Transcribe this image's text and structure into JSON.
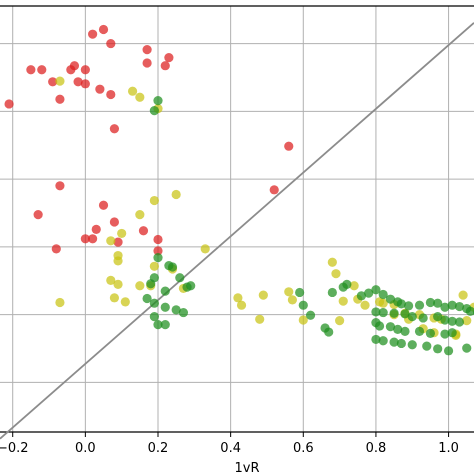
{
  "chart_data": {
    "type": "scatter",
    "xlabel": "1vR",
    "xlim": [
      -0.235,
      1.07
    ],
    "ylim": [
      0.0,
      6.35
    ],
    "x_ticks": [
      -0.2,
      0.0,
      0.2,
      0.4,
      0.6,
      0.8,
      1.0
    ],
    "x_tick_labels": [
      "−0.2",
      "0.0",
      "0.2",
      "0.4",
      "0.6",
      "0.8",
      "1.0"
    ],
    "y_ticks": [
      0.74,
      1.75,
      2.76,
      3.77,
      4.78,
      5.79
    ],
    "grid": true,
    "reference_line": {
      "from": [
        -0.235,
        -0.1
      ],
      "to": [
        1.07,
        6.1
      ]
    },
    "colors": {
      "red": "#dd1f1f",
      "yellow": "#c9c414",
      "green": "#1f8f1f",
      "line": "#8c8c8c",
      "grid": "#b0b0b0"
    },
    "series": [
      {
        "color_key": "red",
        "points": [
          [
            0.05,
            6.0
          ],
          [
            0.02,
            5.93
          ],
          [
            0.07,
            5.79
          ],
          [
            0.17,
            5.7
          ],
          [
            0.23,
            5.58
          ],
          [
            -0.15,
            5.4
          ],
          [
            -0.12,
            5.4
          ],
          [
            -0.03,
            5.46
          ],
          [
            -0.04,
            5.4
          ],
          [
            0.17,
            5.5
          ],
          [
            0.22,
            5.46
          ],
          [
            0.0,
            5.4
          ],
          [
            -0.09,
            5.22
          ],
          [
            -0.02,
            5.22
          ],
          [
            0.0,
            5.19
          ],
          [
            0.04,
            5.11
          ],
          [
            0.07,
            5.03
          ],
          [
            -0.21,
            4.89
          ],
          [
            -0.07,
            4.96
          ],
          [
            0.08,
            4.52
          ],
          [
            0.56,
            4.26
          ],
          [
            -0.07,
            3.67
          ],
          [
            0.52,
            3.61
          ],
          [
            0.05,
            3.38
          ],
          [
            -0.13,
            3.24
          ],
          [
            0.08,
            3.13
          ],
          [
            0.03,
            3.02
          ],
          [
            0.16,
            3.0
          ],
          [
            0.0,
            2.88
          ],
          [
            0.02,
            2.88
          ],
          [
            0.09,
            2.83
          ],
          [
            0.2,
            2.87
          ],
          [
            -0.08,
            2.73
          ],
          [
            0.2,
            2.7
          ]
        ]
      },
      {
        "color_key": "yellow",
        "points": [
          [
            -0.07,
            5.23
          ],
          [
            0.13,
            5.08
          ],
          [
            0.15,
            4.99
          ],
          [
            0.2,
            4.82
          ],
          [
            0.25,
            3.54
          ],
          [
            0.19,
            3.45
          ],
          [
            0.15,
            3.24
          ],
          [
            0.1,
            2.96
          ],
          [
            0.07,
            2.85
          ],
          [
            0.09,
            2.63
          ],
          [
            0.09,
            2.55
          ],
          [
            0.19,
            2.47
          ],
          [
            0.24,
            2.43
          ],
          [
            0.33,
            2.73
          ],
          [
            0.18,
            2.18
          ],
          [
            0.07,
            2.26
          ],
          [
            0.09,
            2.2
          ],
          [
            0.15,
            2.18
          ],
          [
            0.27,
            2.14
          ],
          [
            0.08,
            2.0
          ],
          [
            0.11,
            1.94
          ],
          [
            -0.07,
            1.93
          ],
          [
            0.42,
            2.0
          ],
          [
            0.49,
            2.04
          ],
          [
            0.43,
            1.89
          ],
          [
            0.48,
            1.68
          ],
          [
            0.6,
            1.67
          ],
          [
            0.68,
            2.53
          ],
          [
            0.69,
            2.36
          ],
          [
            0.56,
            2.09
          ],
          [
            0.57,
            1.97
          ],
          [
            0.74,
            2.18
          ],
          [
            0.77,
            1.89
          ],
          [
            0.71,
            1.95
          ],
          [
            0.81,
            1.94
          ],
          [
            0.82,
            1.92
          ],
          [
            0.85,
            1.9
          ],
          [
            0.85,
            1.75
          ],
          [
            0.92,
            1.75
          ],
          [
            0.96,
            1.7
          ],
          [
            0.98,
            1.68
          ],
          [
            1.05,
            1.66
          ],
          [
            1.04,
            2.04
          ],
          [
            1.09,
            2.02
          ],
          [
            1.07,
            1.86
          ],
          [
            0.93,
            1.54
          ],
          [
            0.96,
            1.48
          ],
          [
            1.02,
            1.44
          ],
          [
            1.02,
            1.46
          ],
          [
            0.75,
            1.98
          ],
          [
            0.88,
            1.77
          ],
          [
            0.89,
            1.68
          ],
          [
            0.7,
            1.66
          ]
        ]
      },
      {
        "color_key": "green",
        "points": [
          [
            0.2,
            4.94
          ],
          [
            0.19,
            4.79
          ],
          [
            0.2,
            2.6
          ],
          [
            0.23,
            2.48
          ],
          [
            0.24,
            2.46
          ],
          [
            0.19,
            2.3
          ],
          [
            0.26,
            2.3
          ],
          [
            0.18,
            2.21
          ],
          [
            0.29,
            2.18
          ],
          [
            0.28,
            2.16
          ],
          [
            0.22,
            2.1
          ],
          [
            0.17,
            1.99
          ],
          [
            0.19,
            1.92
          ],
          [
            0.22,
            1.86
          ],
          [
            0.25,
            1.82
          ],
          [
            0.27,
            1.78
          ],
          [
            0.19,
            1.72
          ],
          [
            0.2,
            1.6
          ],
          [
            0.22,
            1.6
          ],
          [
            0.59,
            2.08
          ],
          [
            0.6,
            1.89
          ],
          [
            0.62,
            1.74
          ],
          [
            0.66,
            1.55
          ],
          [
            0.67,
            1.49
          ],
          [
            0.71,
            2.16
          ],
          [
            0.72,
            2.2
          ],
          [
            0.68,
            2.08
          ],
          [
            0.76,
            2.03
          ],
          [
            0.78,
            2.07
          ],
          [
            0.8,
            2.12
          ],
          [
            0.82,
            2.05
          ],
          [
            0.84,
            1.98
          ],
          [
            0.86,
            1.94
          ],
          [
            0.87,
            1.91
          ],
          [
            0.89,
            1.88
          ],
          [
            0.92,
            1.89
          ],
          [
            0.95,
            1.93
          ],
          [
            0.97,
            1.92
          ],
          [
            0.99,
            1.86
          ],
          [
            1.01,
            1.89
          ],
          [
            1.03,
            1.87
          ],
          [
            1.05,
            1.84
          ],
          [
            1.06,
            1.8
          ],
          [
            1.08,
            1.78
          ],
          [
            0.8,
            1.79
          ],
          [
            0.82,
            1.78
          ],
          [
            0.85,
            1.77
          ],
          [
            0.88,
            1.76
          ],
          [
            0.9,
            1.72
          ],
          [
            0.93,
            1.7
          ],
          [
            0.97,
            1.72
          ],
          [
            0.99,
            1.67
          ],
          [
            1.01,
            1.65
          ],
          [
            1.03,
            1.64
          ],
          [
            0.8,
            1.63
          ],
          [
            0.81,
            1.58
          ],
          [
            0.84,
            1.57
          ],
          [
            0.86,
            1.53
          ],
          [
            0.88,
            1.5
          ],
          [
            0.92,
            1.5
          ],
          [
            0.95,
            1.47
          ],
          [
            0.99,
            1.46
          ],
          [
            1.01,
            1.48
          ],
          [
            0.8,
            1.38
          ],
          [
            0.82,
            1.36
          ],
          [
            0.85,
            1.34
          ],
          [
            0.87,
            1.32
          ],
          [
            0.9,
            1.3
          ],
          [
            0.94,
            1.28
          ],
          [
            0.97,
            1.24
          ],
          [
            1.0,
            1.21
          ],
          [
            1.05,
            1.25
          ]
        ]
      }
    ]
  }
}
